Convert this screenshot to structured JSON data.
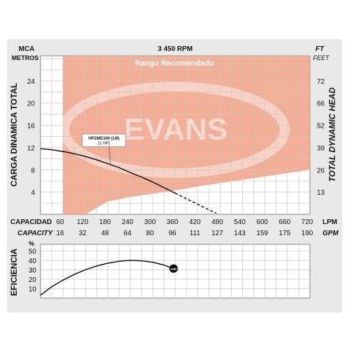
{
  "chart_data": [
    {
      "type": "line",
      "title": "3 450 RPM",
      "recommended_range_label": "Rango Recomendado",
      "watermark_text": "EVANS",
      "left_axis": {
        "unit_top": "MCA",
        "unit_bottom": "METROS",
        "label": "CARGA DINAMICA TOTAL",
        "ticks": [
          "4",
          "8",
          "12",
          "16",
          "20",
          "24"
        ],
        "tick_values": [
          4,
          8,
          12,
          16,
          20,
          24
        ],
        "ylim": [
          0,
          28.5
        ]
      },
      "right_axis": {
        "unit_top": "FT",
        "unit_bottom": "FEET",
        "label": "TOTAL DYNAMIC HEAD",
        "ticks": [
          "13",
          "26",
          "39",
          "52",
          "66",
          "72"
        ],
        "tick_values_m": [
          4,
          8,
          12,
          16,
          20,
          24
        ]
      },
      "x_axis_lpm": {
        "label": "CAPACIDAD",
        "unit": "LPM",
        "ticks": [
          "60",
          "120",
          "180",
          "240",
          "300",
          "360",
          "420",
          "480",
          "540",
          "600",
          "660",
          "720"
        ],
        "tick_values": [
          60,
          120,
          180,
          240,
          300,
          360,
          420,
          480,
          540,
          600,
          660,
          720
        ],
        "xlim": [
          0,
          720
        ]
      },
      "x_axis_gpm": {
        "label": "CAPACITY",
        "unit": "GPM",
        "ticks": [
          "16",
          "32",
          "48",
          "64",
          "80",
          "96",
          "111",
          "127",
          "143",
          "159",
          "175",
          "190"
        ]
      },
      "series": [
        {
          "name": "HP2ME100 (1Ø)",
          "sublabel": "(1 HP)",
          "x": [
            0,
            30,
            60,
            90,
            120,
            150,
            180,
            210,
            240,
            270,
            300,
            330,
            360
          ],
          "y": [
            11.8,
            11.6,
            11.3,
            10.9,
            10.4,
            9.8,
            9.1,
            8.4,
            7.5,
            6.7,
            5.8,
            4.8,
            3.8
          ],
          "style": "solid"
        },
        {
          "name": "HP2ME100 extension",
          "x": [
            360,
            390,
            420,
            450,
            470
          ],
          "y": [
            3.8,
            2.8,
            1.8,
            0.8,
            0.2
          ],
          "style": "dashed"
        }
      ],
      "recommended_region": {
        "x": [
          60,
          720
        ],
        "y_upper": 28.5,
        "lower_x": [
          60,
          90,
          120,
          180,
          240,
          300,
          360,
          420,
          480,
          540,
          600,
          660,
          720
        ],
        "lower_y": [
          0,
          0,
          0,
          2.3,
          3.1,
          3.7,
          4.3,
          5.0,
          5.6,
          6.2,
          6.8,
          7.4,
          8.0
        ],
        "color": "#f2a58a"
      }
    },
    {
      "type": "line",
      "y_axis": {
        "label": "EFICIENCIA",
        "unit": "%",
        "ticks": [
          "10",
          "20",
          "30",
          "40",
          "50"
        ],
        "tick_values": [
          10,
          20,
          30,
          40,
          50
        ],
        "ylim": [
          0,
          57
        ]
      },
      "series": [
        {
          "name": "1HP",
          "x": [
            0,
            30,
            60,
            90,
            120,
            150,
            180,
            210,
            240,
            270,
            300,
            330,
            350
          ],
          "y": [
            3,
            12,
            19,
            25,
            30,
            34,
            37,
            39,
            40,
            39.5,
            38,
            35,
            32
          ]
        }
      ],
      "end_marker_label": "1HP"
    }
  ],
  "colors": {
    "background": "#ffffff",
    "panel": "#e9e9e9",
    "grid": "#c8c8c8",
    "recommended": "#f2a58a",
    "recommended_dark": "#ec8e6e",
    "curve": "#000000",
    "range_label": "#ffffff"
  }
}
